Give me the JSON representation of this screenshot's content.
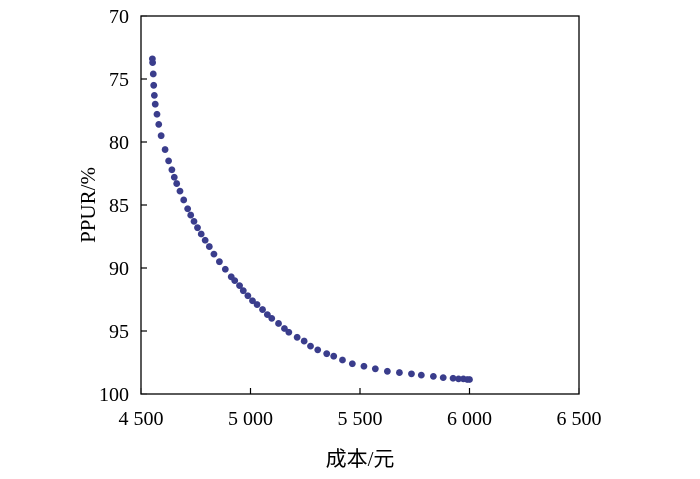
{
  "chart_data": {
    "type": "scatter",
    "xlabel": "成本/元",
    "ylabel": "PPUR/%",
    "xlim": [
      4500,
      6500
    ],
    "ylim": [
      70,
      100
    ],
    "y_inverted": true,
    "grid": false,
    "marker_color": "#3a3d8c",
    "x_ticks": [
      4500,
      5000,
      5500,
      6000,
      6500
    ],
    "x_tick_labels": [
      "4 500",
      "5 000",
      "5 500",
      "6 000",
      "6 500"
    ],
    "y_ticks": [
      70,
      75,
      80,
      85,
      90,
      95,
      100
    ],
    "y_tick_labels": [
      "70",
      "75",
      "80",
      "85",
      "90",
      "95",
      "100"
    ],
    "series": [
      {
        "points": [
          [
            4552,
            73.4
          ],
          [
            4553,
            73.7
          ],
          [
            4556,
            74.6
          ],
          [
            4558,
            75.5
          ],
          [
            4561,
            76.3
          ],
          [
            4565,
            77.0
          ],
          [
            4573,
            77.8
          ],
          [
            4581,
            78.6
          ],
          [
            4592,
            79.5
          ],
          [
            4610,
            80.6
          ],
          [
            4626,
            81.5
          ],
          [
            4641,
            82.2
          ],
          [
            4652,
            82.8
          ],
          [
            4663,
            83.3
          ],
          [
            4678,
            83.9
          ],
          [
            4695,
            84.6
          ],
          [
            4713,
            85.3
          ],
          [
            4727,
            85.8
          ],
          [
            4742,
            86.3
          ],
          [
            4758,
            86.8
          ],
          [
            4775,
            87.3
          ],
          [
            4793,
            87.8
          ],
          [
            4812,
            88.3
          ],
          [
            4833,
            88.9
          ],
          [
            4858,
            89.5
          ],
          [
            4885,
            90.1
          ],
          [
            4912,
            90.7
          ],
          [
            4928,
            91.0
          ],
          [
            4950,
            91.4
          ],
          [
            4967,
            91.8
          ],
          [
            4988,
            92.2
          ],
          [
            5009,
            92.6
          ],
          [
            5030,
            92.9
          ],
          [
            5055,
            93.3
          ],
          [
            5077,
            93.7
          ],
          [
            5097,
            94.0
          ],
          [
            5128,
            94.4
          ],
          [
            5155,
            94.8
          ],
          [
            5175,
            95.1
          ],
          [
            5213,
            95.5
          ],
          [
            5245,
            95.8
          ],
          [
            5274,
            96.2
          ],
          [
            5307,
            96.5
          ],
          [
            5348,
            96.8
          ],
          [
            5380,
            97.0
          ],
          [
            5420,
            97.3
          ],
          [
            5465,
            97.6
          ],
          [
            5518,
            97.8
          ],
          [
            5570,
            98.0
          ],
          [
            5625,
            98.2
          ],
          [
            5680,
            98.3
          ],
          [
            5735,
            98.4
          ],
          [
            5780,
            98.5
          ],
          [
            5835,
            98.6
          ],
          [
            5880,
            98.7
          ],
          [
            5925,
            98.75
          ],
          [
            5950,
            98.8
          ],
          [
            5972,
            98.8
          ],
          [
            5990,
            98.85
          ],
          [
            6000,
            98.85
          ]
        ]
      }
    ]
  }
}
